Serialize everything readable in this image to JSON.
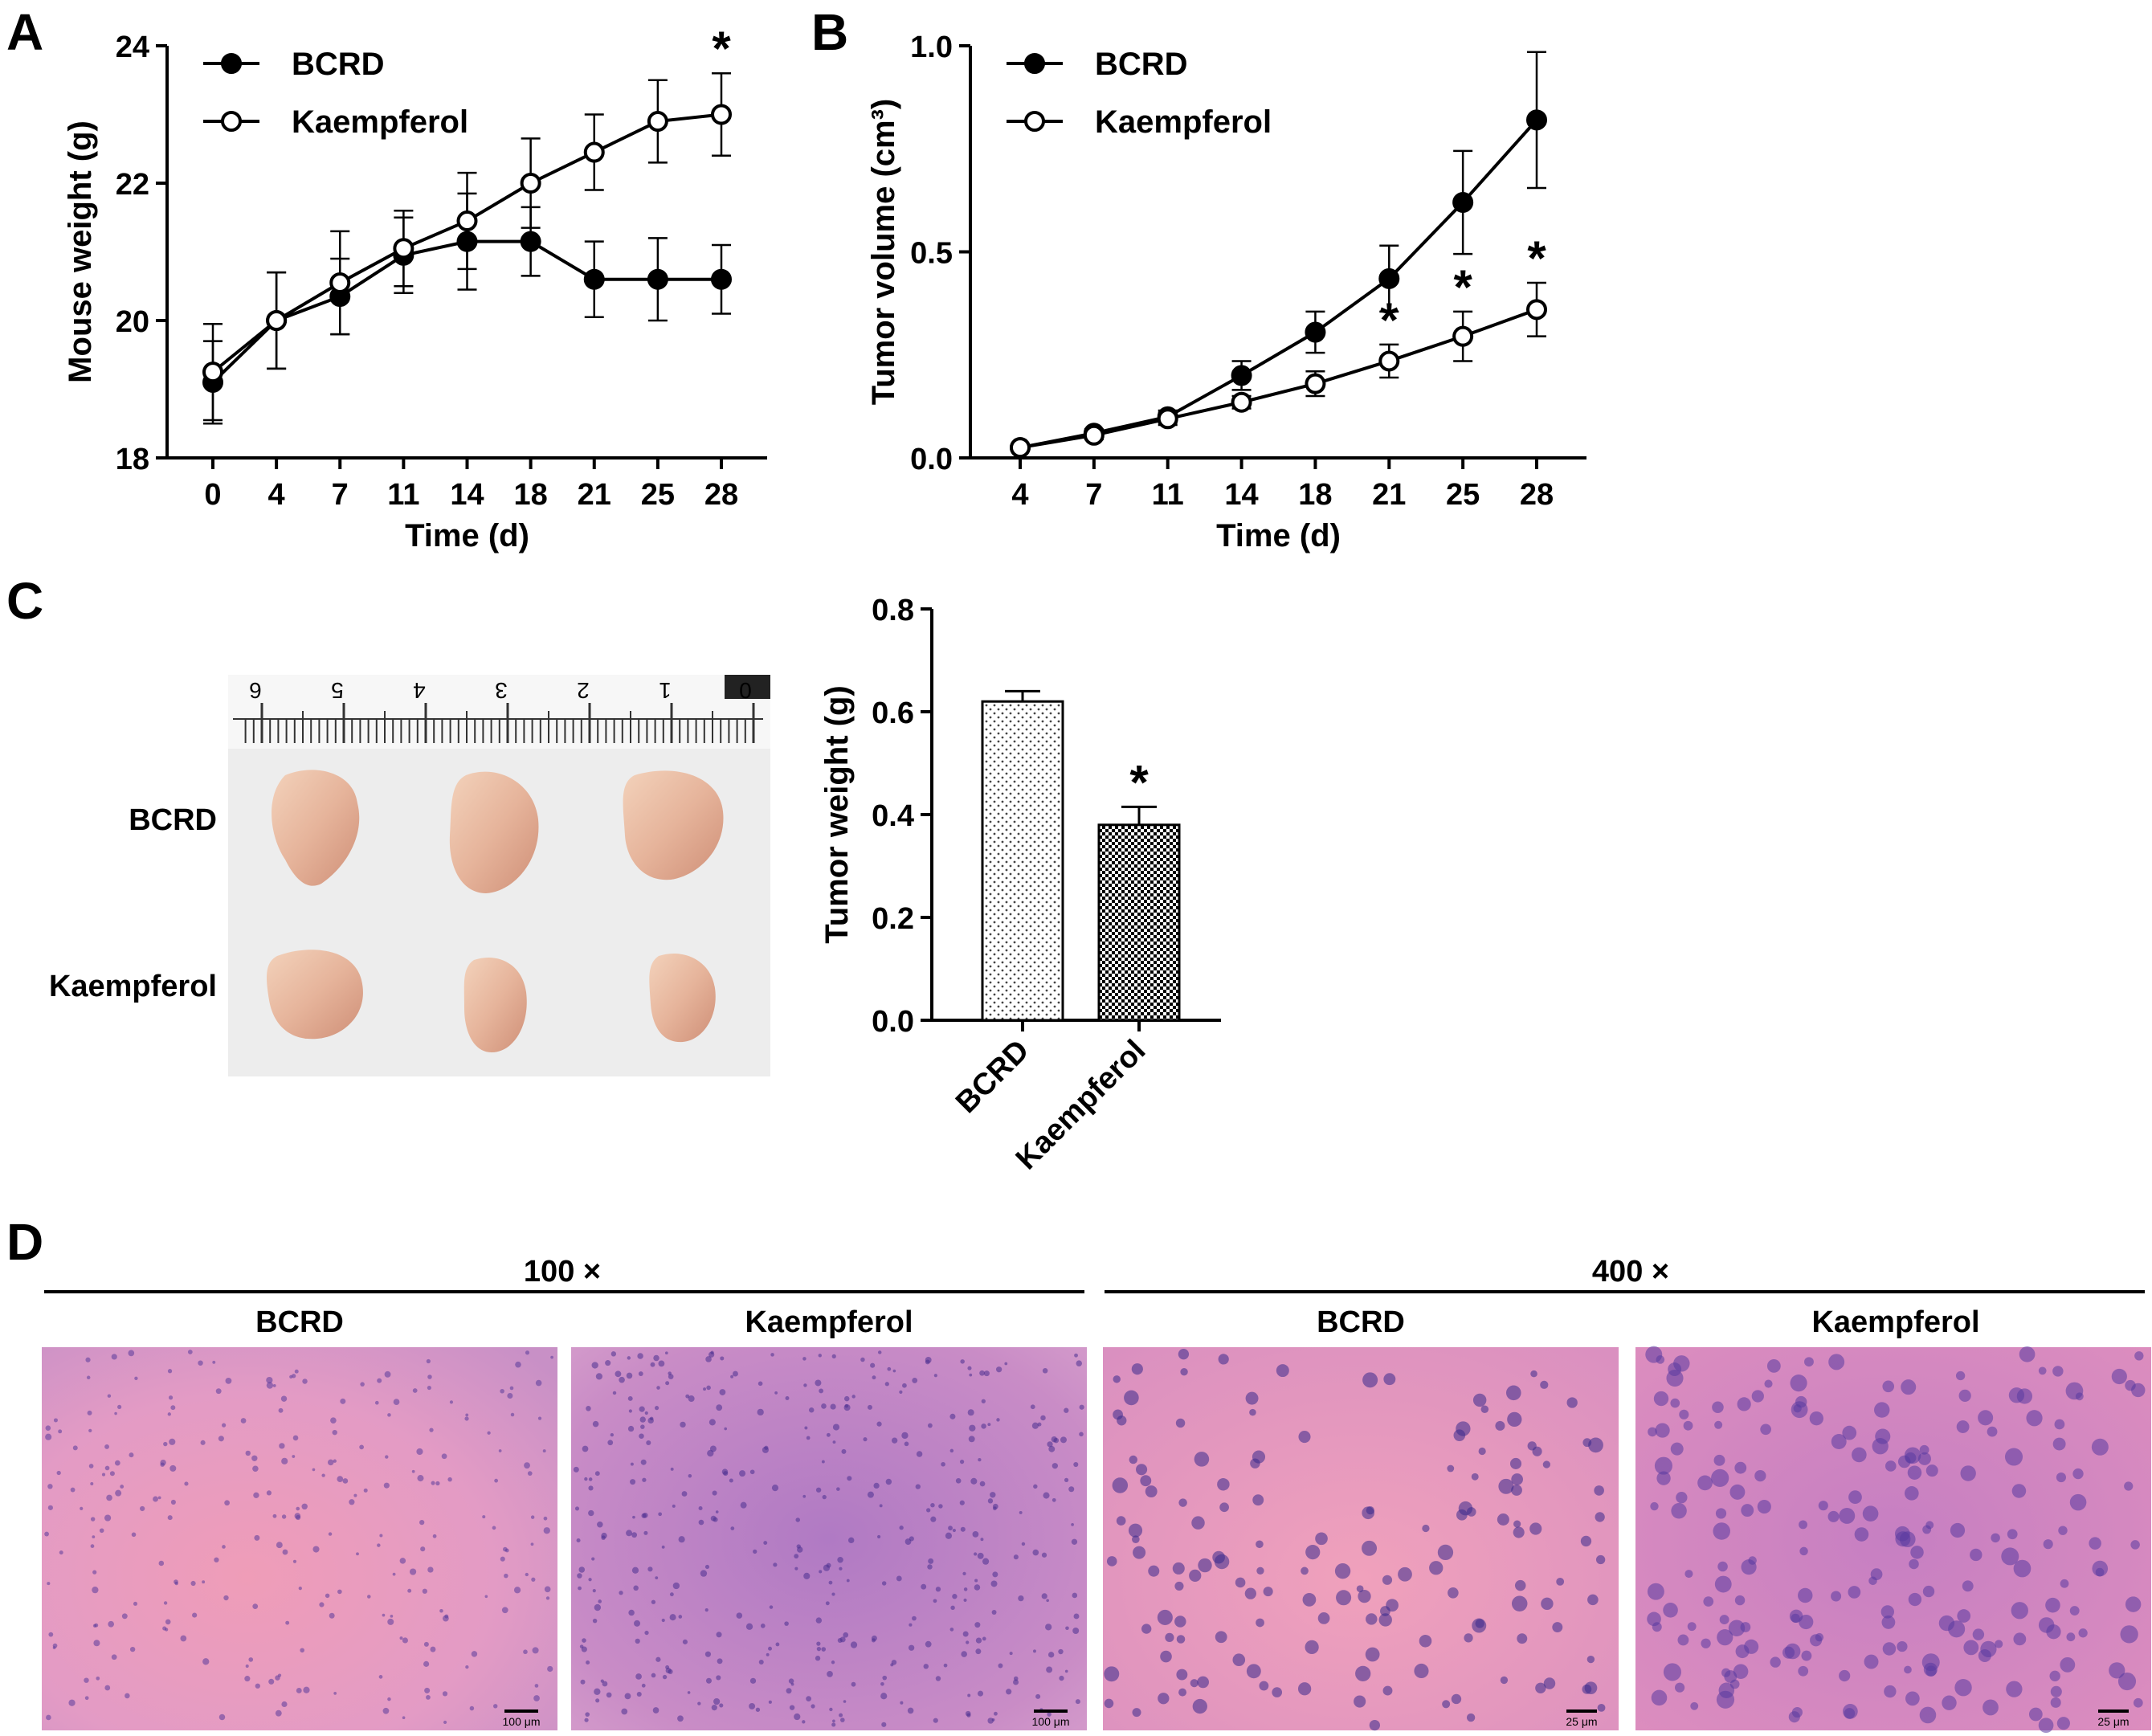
{
  "panels": {
    "a": {
      "letter": "A"
    },
    "b": {
      "letter": "B"
    },
    "c": {
      "letter": "C",
      "photo_row_labels": [
        "BCRD",
        "Kaempferol"
      ],
      "ruler_numbers": [
        "6",
        "5",
        "4",
        "3",
        "2",
        "1",
        "0"
      ]
    },
    "d": {
      "letter": "D",
      "magnifications": [
        "100 ×",
        "400 ×"
      ],
      "column_labels": [
        "BCRD",
        "Kaempferol",
        "BCRD",
        "Kaempferol"
      ],
      "scale_bars": [
        "100 μm",
        "100 μm",
        "25 μm",
        "25 μm"
      ]
    }
  },
  "chart_data": [
    {
      "id": "A",
      "type": "line",
      "xlabel": "Time (d)",
      "ylabel": "Mouse weight (g)",
      "x": [
        0,
        4,
        7,
        11,
        14,
        18,
        21,
        25,
        28
      ],
      "ylim": [
        18,
        24
      ],
      "yticks": [
        18,
        20,
        22,
        24
      ],
      "legend_position": "top-left",
      "series": [
        {
          "name": "BCRD",
          "marker": "filled",
          "values": [
            19.1,
            20.0,
            20.35,
            20.95,
            21.15,
            21.15,
            20.6,
            20.6,
            20.6
          ],
          "error": [
            0.6,
            0.7,
            0.55,
            0.55,
            0.7,
            0.5,
            0.55,
            0.6,
            0.5
          ]
        },
        {
          "name": "Kaempferol",
          "marker": "open",
          "values": [
            19.25,
            20.0,
            20.55,
            21.05,
            21.45,
            22.0,
            22.45,
            22.9,
            23.0
          ],
          "error": [
            0.7,
            0.7,
            0.75,
            0.55,
            0.7,
            0.65,
            0.55,
            0.6,
            0.6
          ]
        }
      ],
      "annotations": [
        {
          "x": 28,
          "text": "*",
          "series": "Kaempferol"
        }
      ]
    },
    {
      "id": "B",
      "type": "line",
      "xlabel": "Time (d)",
      "ylabel": "Tumor volume (cm³)",
      "x": [
        4,
        7,
        11,
        14,
        18,
        21,
        25,
        28
      ],
      "ylim": [
        0,
        1.0
      ],
      "yticks": [
        "0.0",
        "0.5",
        "1.0"
      ],
      "legend_position": "top-left",
      "series": [
        {
          "name": "BCRD",
          "marker": "filled",
          "values": [
            0.025,
            0.06,
            0.1,
            0.2,
            0.305,
            0.435,
            0.62,
            0.82
          ],
          "error": [
            0.005,
            0.01,
            0.015,
            0.035,
            0.05,
            0.08,
            0.125,
            0.165
          ]
        },
        {
          "name": "Kaempferol",
          "marker": "open",
          "values": [
            0.025,
            0.055,
            0.095,
            0.135,
            0.18,
            0.235,
            0.295,
            0.36
          ],
          "error": [
            0.005,
            0.01,
            0.015,
            0.015,
            0.03,
            0.04,
            0.06,
            0.065
          ]
        }
      ],
      "annotations": [
        {
          "x": 21,
          "text": "*",
          "series": "Kaempferol"
        },
        {
          "x": 25,
          "text": "*",
          "series": "Kaempferol"
        },
        {
          "x": 28,
          "text": "*",
          "series": "Kaempferol"
        }
      ]
    },
    {
      "id": "C",
      "type": "bar",
      "ylabel": "Tumor weight (g)",
      "categories": [
        "BCRD",
        "Kaempferol"
      ],
      "values": [
        0.62,
        0.38
      ],
      "error": [
        0.02,
        0.035
      ],
      "ylim": [
        0,
        0.8
      ],
      "yticks": [
        "0.0",
        "0.2",
        "0.4",
        "0.6",
        "0.8"
      ],
      "patterns": [
        "dots",
        "checker"
      ],
      "annotations": [
        {
          "category": "Kaempferol",
          "text": "*"
        }
      ]
    }
  ]
}
